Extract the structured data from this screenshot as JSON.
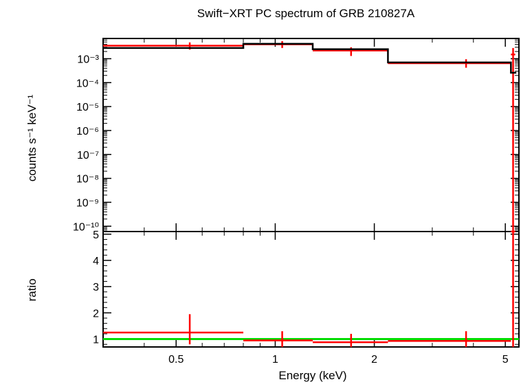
{
  "chart_data": {
    "type": "step",
    "title": "Swift−XRT PC spectrum of GRB 210827A",
    "xlabel": "Energy (keV)",
    "x_scale": "log",
    "xlim": [
      0.3,
      5.5
    ],
    "x_ticks": [
      {
        "value": 0.5,
        "label": "0.5"
      },
      {
        "value": 1,
        "label": "1"
      },
      {
        "value": 2,
        "label": "2"
      },
      {
        "value": 5,
        "label": "5"
      }
    ],
    "panels": [
      {
        "id": "spectrum",
        "ylabel": "counts s⁻¹ keV⁻¹",
        "y_scale": "log",
        "ylim": [
          6e-11,
          0.007
        ],
        "y_ticks": [
          {
            "value": 0.001,
            "label": "10⁻³"
          },
          {
            "value": 0.0001,
            "label": "10⁻⁴"
          },
          {
            "value": 1e-05,
            "label": "10⁻⁵"
          },
          {
            "value": 1e-06,
            "label": "10⁻⁶"
          },
          {
            "value": 1e-07,
            "label": "10⁻⁷"
          },
          {
            "value": 1e-08,
            "label": "10⁻⁸"
          },
          {
            "value": 1e-09,
            "label": "10⁻⁹"
          },
          {
            "value": 1e-10,
            "label": "10⁻¹⁰"
          }
        ],
        "series": [
          {
            "kind": "data",
            "color": "#ff0000",
            "points": [
              {
                "x": 0.55,
                "xlo": 0.3,
                "xhi": 0.8,
                "y": 0.0035,
                "ylo": 0.0024,
                "yhi": 0.0048
              },
              {
                "x": 1.05,
                "xlo": 0.8,
                "xhi": 1.3,
                "y": 0.004,
                "ylo": 0.0028,
                "yhi": 0.0054
              },
              {
                "x": 1.7,
                "xlo": 1.3,
                "xhi": 2.2,
                "y": 0.0022,
                "ylo": 0.0013,
                "yhi": 0.003
              },
              {
                "x": 3.8,
                "xlo": 2.2,
                "xhi": 5.2,
                "y": 0.00065,
                "ylo": 0.00042,
                "yhi": 0.00095
              },
              {
                "x": 5.28,
                "xlo": 5.2,
                "xhi": 5.36,
                "y": 0.0015,
                "ylo": 6e-11,
                "yhi": 0.0028
              }
            ]
          },
          {
            "kind": "model",
            "color": "#000000",
            "steps": [
              {
                "x0": 0.3,
                "x1": 0.8,
                "y": 0.0028
              },
              {
                "x0": 0.8,
                "x1": 1.3,
                "y": 0.0042
              },
              {
                "x0": 1.3,
                "x1": 2.2,
                "y": 0.0025
              },
              {
                "x0": 2.2,
                "x1": 5.2,
                "y": 0.0007
              },
              {
                "x0": 5.2,
                "x1": 5.4,
                "y": 0.00026
              }
            ]
          }
        ]
      },
      {
        "id": "ratio",
        "ylabel": "ratio",
        "y_scale": "linear",
        "ylim": [
          0.7,
          5.1
        ],
        "y_ticks": [
          {
            "value": 1,
            "label": "1"
          },
          {
            "value": 2,
            "label": "2"
          },
          {
            "value": 3,
            "label": "3"
          },
          {
            "value": 4,
            "label": "4"
          },
          {
            "value": 5,
            "label": "5"
          }
        ],
        "reference_line": {
          "y": 1,
          "color": "#00dd00"
        },
        "series": [
          {
            "kind": "data",
            "color": "#ff0000",
            "points": [
              {
                "x": 0.55,
                "xlo": 0.3,
                "xhi": 0.8,
                "y": 1.25,
                "ylo": 0.8,
                "yhi": 1.95
              },
              {
                "x": 1.05,
                "xlo": 0.8,
                "xhi": 1.3,
                "y": 0.95,
                "ylo": 0.7,
                "yhi": 1.3
              },
              {
                "x": 1.7,
                "xlo": 1.3,
                "xhi": 2.2,
                "y": 0.88,
                "ylo": 0.7,
                "yhi": 1.2
              },
              {
                "x": 3.8,
                "xlo": 2.2,
                "xhi": 5.2,
                "y": 0.93,
                "ylo": 0.7,
                "yhi": 1.3
              },
              {
                "x": 5.28,
                "xlo": 5.2,
                "xhi": 5.36,
                "y": 5.1,
                "ylo": 0.7,
                "yhi": 5.1
              }
            ]
          }
        ]
      }
    ]
  }
}
